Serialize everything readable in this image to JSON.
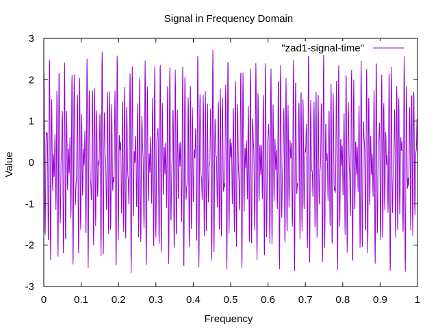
{
  "chart_data": {
    "type": "line",
    "title": "Signal in Frequency Domain",
    "xlabel": "Frequency",
    "ylabel": "Value",
    "xlim": [
      0,
      1
    ],
    "ylim": [
      -3,
      3
    ],
    "xticks": [
      "0",
      "0.1",
      "0.2",
      "0.3",
      "0.4",
      "0.5",
      "0.6",
      "0.7",
      "0.8",
      "0.9",
      "1"
    ],
    "yticks": [
      "-3",
      "-2",
      "-1",
      "0",
      "1",
      "2",
      "3"
    ],
    "grid": false,
    "legend_position": "top-right",
    "series": [
      {
        "name": "\"zad1-signal-time\"",
        "color": "#9400d3",
        "description_of_shape": "dense oscillation",
        "sample_points": {
          "x": [
            0,
            0.005,
            0.01,
            0.015,
            0.02,
            0.025,
            0.03,
            0.035,
            0.04,
            0.045,
            0.05,
            0.1,
            0.15,
            0.2,
            0.25,
            0.3,
            0.35,
            0.4,
            0.45,
            0.5,
            0.55,
            0.6,
            0.65,
            0.7,
            0.75,
            0.8,
            0.85,
            0.9,
            0.95,
            1
          ],
          "y": [
            2.7,
            -2.6,
            1.2,
            -1.3,
            2.7,
            -2.7,
            1.1,
            -1.2,
            2.6,
            -2.7,
            0.2,
            2.7,
            -2.7,
            2.7,
            -2.7,
            2.7,
            -2.7,
            2.7,
            -2.7,
            2.7,
            -2.7,
            2.7,
            -2.7,
            2.7,
            -2.7,
            2.7,
            -2.7,
            2.7,
            -2.7,
            2.7
          ]
        }
      }
    ]
  }
}
